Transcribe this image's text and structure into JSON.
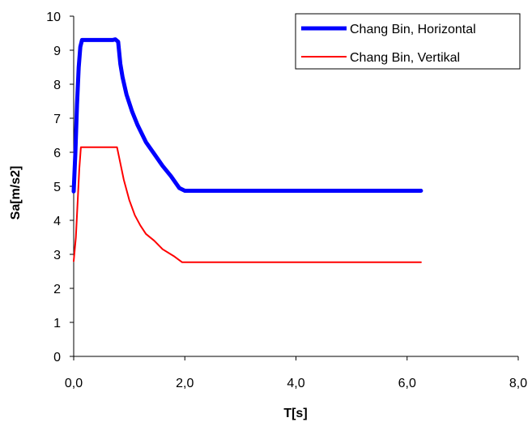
{
  "chart_data": {
    "type": "line",
    "xlabel": "T[s]",
    "ylabel": "Sa[m/s2]",
    "xlim": [
      0,
      8
    ],
    "ylim": [
      0,
      10
    ],
    "xticks": [
      "0,0",
      "2,0",
      "4,0",
      "6,0",
      "8,0"
    ],
    "yticks": [
      "0",
      "1",
      "2",
      "3",
      "4",
      "5",
      "6",
      "7",
      "8",
      "9",
      "10"
    ],
    "grid": false,
    "legend_position": "top-right",
    "series": [
      {
        "name": "Chang Bin, Horizontal",
        "color": "#0000ff",
        "points": [
          [
            0.0,
            4.85
          ],
          [
            0.03,
            6.0
          ],
          [
            0.06,
            7.4
          ],
          [
            0.09,
            8.5
          ],
          [
            0.12,
            9.1
          ],
          [
            0.15,
            9.3
          ],
          [
            0.3,
            9.3
          ],
          [
            0.5,
            9.3
          ],
          [
            0.7,
            9.3
          ],
          [
            0.75,
            9.32
          ],
          [
            0.8,
            9.25
          ],
          [
            0.84,
            8.6
          ],
          [
            0.88,
            8.2
          ],
          [
            0.95,
            7.7
          ],
          [
            1.05,
            7.2
          ],
          [
            1.15,
            6.8
          ],
          [
            1.3,
            6.3
          ],
          [
            1.45,
            5.95
          ],
          [
            1.6,
            5.6
          ],
          [
            1.75,
            5.3
          ],
          [
            1.9,
            4.95
          ],
          [
            2.0,
            4.87
          ],
          [
            3.0,
            4.87
          ],
          [
            4.0,
            4.87
          ],
          [
            5.0,
            4.87
          ],
          [
            6.25,
            4.87
          ]
        ]
      },
      {
        "name": "Chang Bin, Vertikal",
        "color": "#ff0000",
        "points": [
          [
            0.0,
            2.8
          ],
          [
            0.04,
            3.5
          ],
          [
            0.07,
            4.5
          ],
          [
            0.1,
            5.5
          ],
          [
            0.13,
            6.15
          ],
          [
            0.4,
            6.15
          ],
          [
            0.78,
            6.15
          ],
          [
            0.9,
            5.2
          ],
          [
            1.0,
            4.6
          ],
          [
            1.1,
            4.15
          ],
          [
            1.2,
            3.85
          ],
          [
            1.3,
            3.6
          ],
          [
            1.45,
            3.4
          ],
          [
            1.6,
            3.15
          ],
          [
            1.8,
            2.95
          ],
          [
            1.95,
            2.77
          ],
          [
            3.0,
            2.77
          ],
          [
            4.0,
            2.77
          ],
          [
            5.0,
            2.77
          ],
          [
            6.25,
            2.77
          ]
        ]
      }
    ]
  }
}
